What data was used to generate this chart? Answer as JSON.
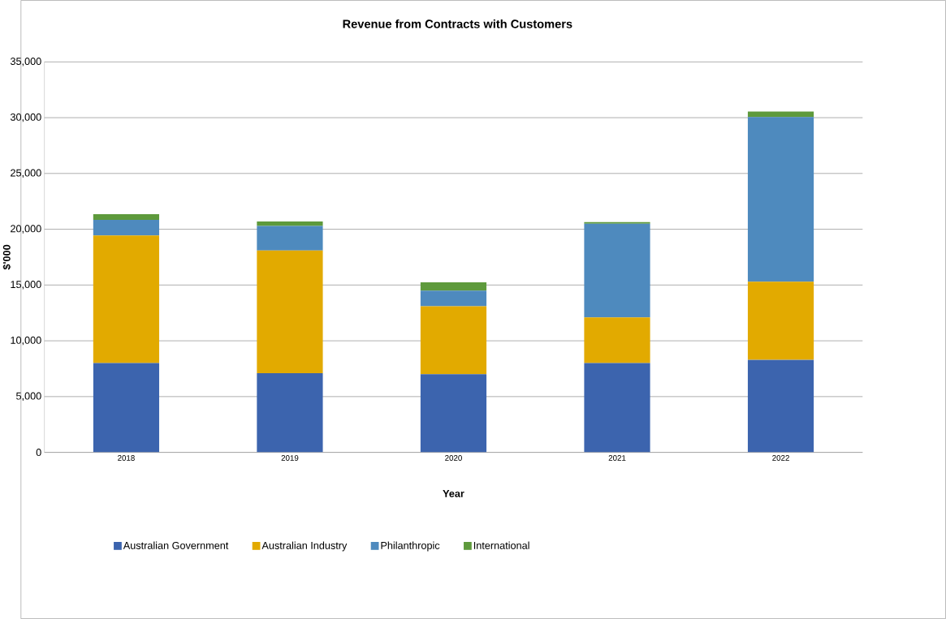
{
  "chart_data": {
    "type": "bar",
    "title": "Revenue from Contracts with Customers",
    "xlabel": "Year",
    "ylabel": "$'000",
    "categories": [
      "2018",
      "2019",
      "2020",
      "2021",
      "2022"
    ],
    "stacked": true,
    "series": [
      {
        "name": "Australian Government",
        "color": "#3c64ae",
        "values": [
          8000,
          7100,
          7000,
          8000,
          8300
        ]
      },
      {
        "name": "Australian Industry",
        "color": "#e2aa00",
        "values": [
          11450,
          11000,
          6100,
          4100,
          7000
        ]
      },
      {
        "name": "Philanthropic",
        "color": "#4e8abe",
        "values": [
          1400,
          2200,
          1400,
          8400,
          14750
        ]
      },
      {
        "name": "International",
        "color": "#5e9a3c",
        "values": [
          500,
          400,
          750,
          150,
          500
        ]
      }
    ],
    "ylim": [
      0,
      35000
    ],
    "yticks": [
      0,
      {
        "value": 5000,
        "label": "5,000"
      },
      {
        "value": 10000,
        "label": "10,000"
      },
      {
        "value": 15000,
        "label": "15,000"
      },
      {
        "value": 20000,
        "label": "20,000"
      },
      {
        "value": 25000,
        "label": "25,000"
      },
      {
        "value": 30000,
        "label": "30,000"
      },
      {
        "value": 35000,
        "label": "35,000"
      }
    ],
    "grid": "y",
    "legend": "bottom"
  }
}
